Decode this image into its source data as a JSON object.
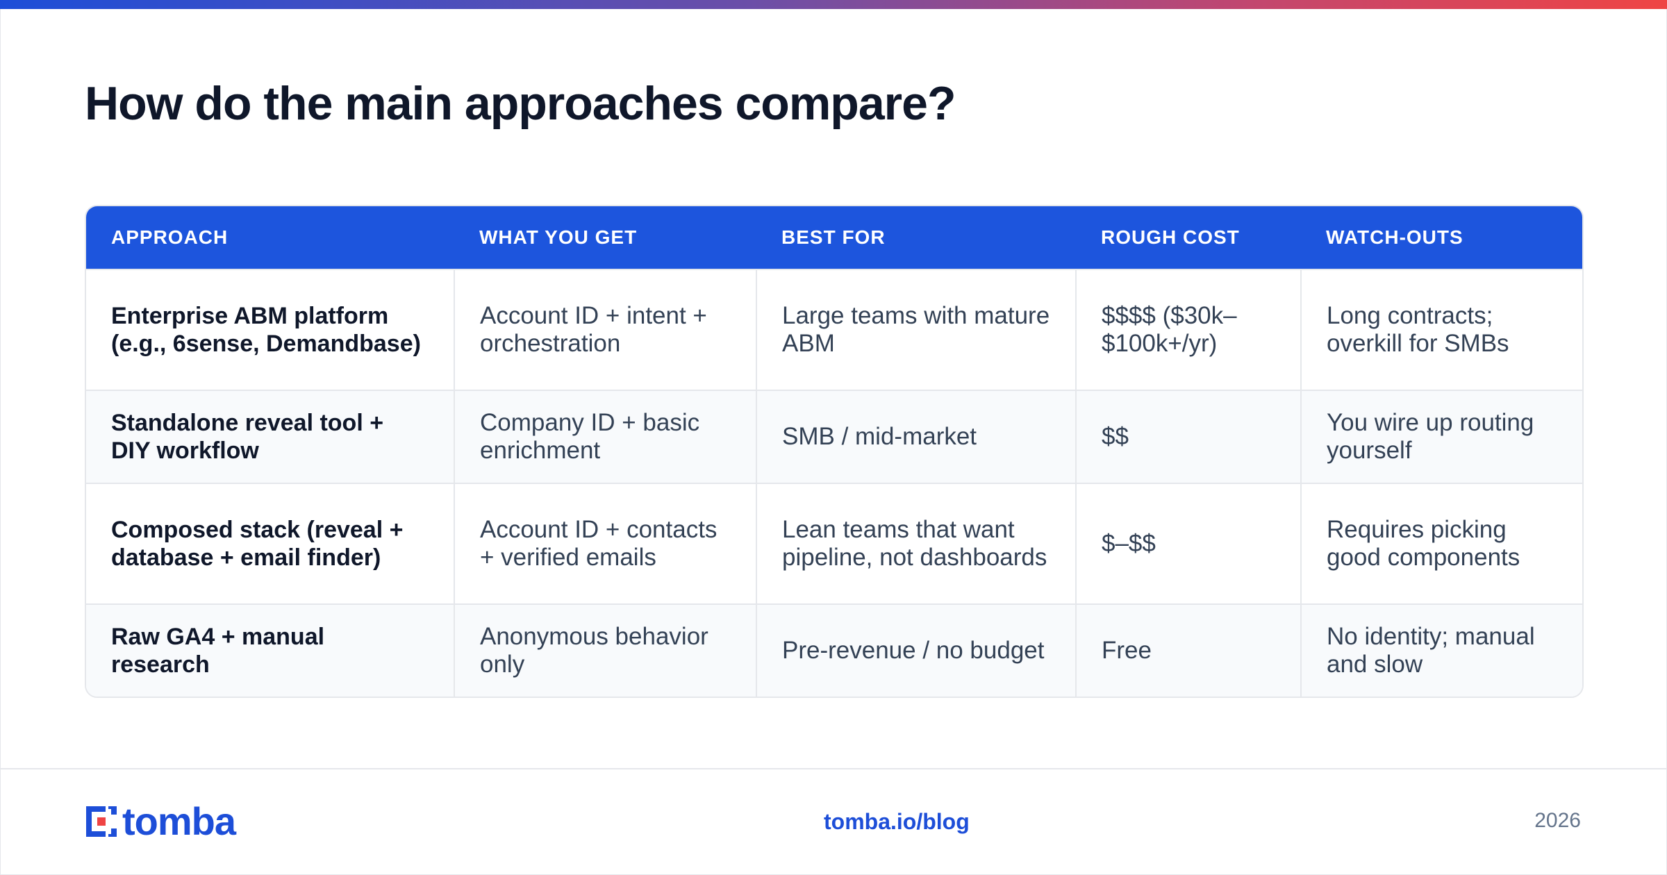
{
  "title": "How do the main approaches compare?",
  "table": {
    "headers": [
      "APPROACH",
      "WHAT YOU GET",
      "BEST FOR",
      "ROUGH COST",
      "WATCH-OUTS"
    ],
    "rows": [
      [
        "Enterprise ABM platform (e.g., 6sense, Demandbase)",
        "Account ID + intent + orchestration",
        "Large teams with mature ABM",
        "$$$$ ($30k–$100k+/yr)",
        "Long contracts; overkill for SMBs"
      ],
      [
        "Standalone reveal tool + DIY workflow",
        "Company ID + basic enrichment",
        "SMB / mid-market",
        "$$",
        "You wire up routing yourself"
      ],
      [
        "Composed stack (reveal + database + email finder)",
        "Account ID + contacts + verified emails",
        "Lean teams that want pipeline, not dashboards",
        "$–$$",
        "Requires picking good components"
      ],
      [
        "Raw GA4 + manual research",
        "Anonymous behavior only",
        "Pre-revenue / no budget",
        "Free",
        "No identity; manual and slow"
      ]
    ]
  },
  "footer": {
    "logo_text": "tomba",
    "link": "tomba.io/blog",
    "year": "2026"
  },
  "colors": {
    "brand": "#1d4ed8",
    "header_bg": "#1d55dd",
    "row_alt_bg": "#f8fafc"
  }
}
